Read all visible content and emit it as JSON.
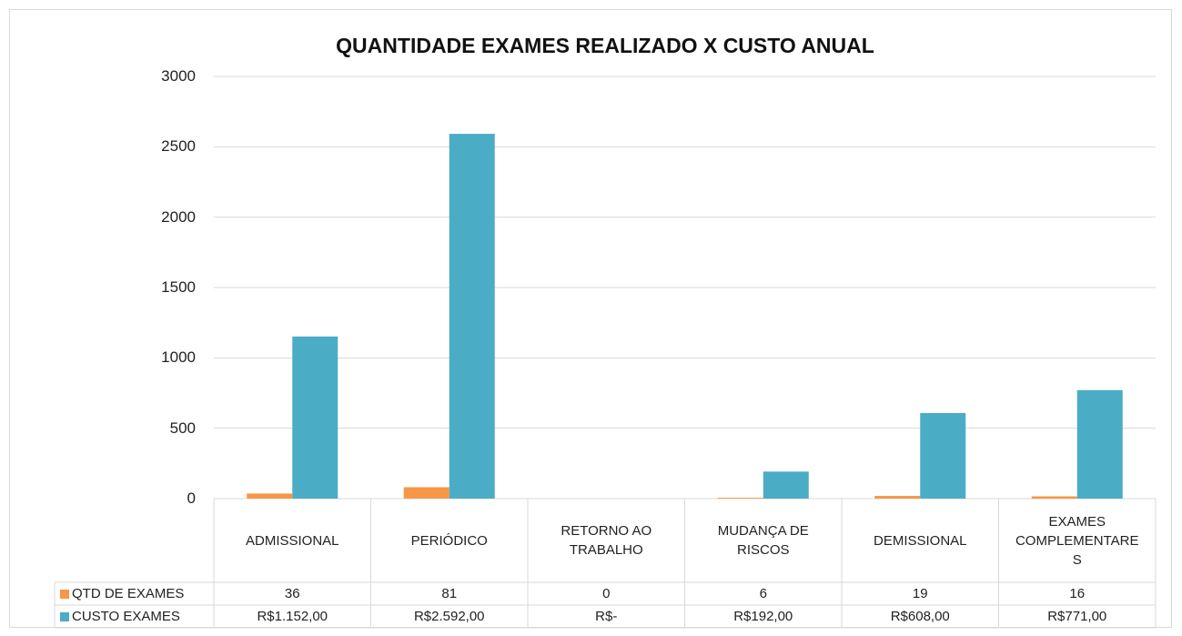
{
  "chart_data": {
    "type": "bar",
    "title": "QUANTIDADE EXAMES REALIZADO X CUSTO ANUAL",
    "categories": [
      "ADMISSIONAL",
      "PERIÓDICO",
      "RETORNO AO TRABALHO",
      "MUDANÇA DE RISCOS",
      "DEMISSIONAL",
      "EXAMES COMPLEMENTARES"
    ],
    "series": [
      {
        "name": "QTD DE EXAMES",
        "color": "#f79646",
        "values": [
          36,
          81,
          0,
          6,
          19,
          16
        ]
      },
      {
        "name": "CUSTO EXAMES",
        "color": "#4bacc6",
        "values": [
          1152,
          2592,
          0,
          192,
          608,
          771
        ],
        "value_labels": [
          "R$1.152,00",
          "R$2.592,00",
          "R$-",
          "R$192,00",
          "R$608,00",
          "R$771,00"
        ]
      }
    ],
    "ylim": [
      0,
      3000
    ],
    "yticks": [
      0,
      500,
      1000,
      1500,
      2000,
      2500,
      3000
    ],
    "grid": true
  }
}
